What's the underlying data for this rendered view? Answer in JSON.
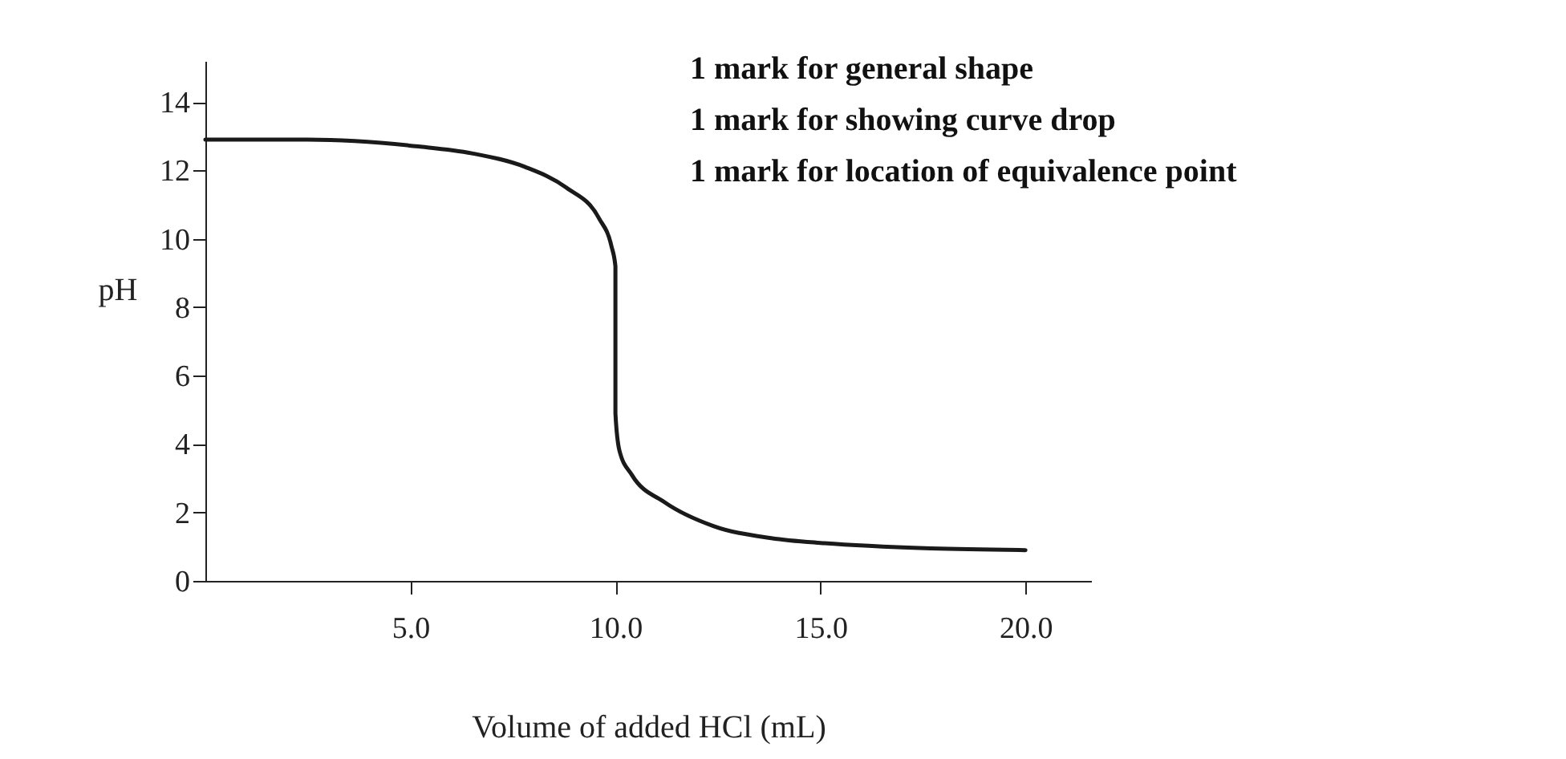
{
  "chart_data": {
    "type": "line",
    "xlabel": "Volume of added HCl (mL)",
    "ylabel": "pH",
    "annotations": [
      "1 mark for general shape",
      "1 mark for showing curve drop",
      "1 mark for location of equivalence point"
    ],
    "series": [
      {
        "color": "#1a1a1a",
        "x": [
          0,
          2.5,
          5.2,
          6.5,
          7.8,
          8.8,
          9.6,
          9.9,
          10,
          10,
          10.1,
          10.4,
          11.2,
          12.4,
          13.8,
          15.1,
          17.7,
          20
        ],
        "values": [
          12.9,
          12.9,
          12.7,
          12.5,
          12.1,
          11.5,
          10.6,
          9.8,
          9.2,
          4.9,
          3.8,
          3.1,
          2.3,
          1.6,
          1.25,
          1.1,
          0.95,
          0.9
        ]
      }
    ],
    "xlim": [
      0,
      21.6
    ],
    "ylim": [
      0,
      15.2
    ],
    "xticks": [
      {
        "value": 5,
        "label": "5.0"
      },
      {
        "value": 10,
        "label": "10.0"
      },
      {
        "value": 15,
        "label": "15.0"
      },
      {
        "value": 20,
        "label": "20.0"
      }
    ],
    "yticks": [
      0,
      2,
      4,
      6,
      8,
      10,
      12,
      14
    ],
    "grid": false,
    "legend": false,
    "marker": "none",
    "line_style": "solid"
  }
}
